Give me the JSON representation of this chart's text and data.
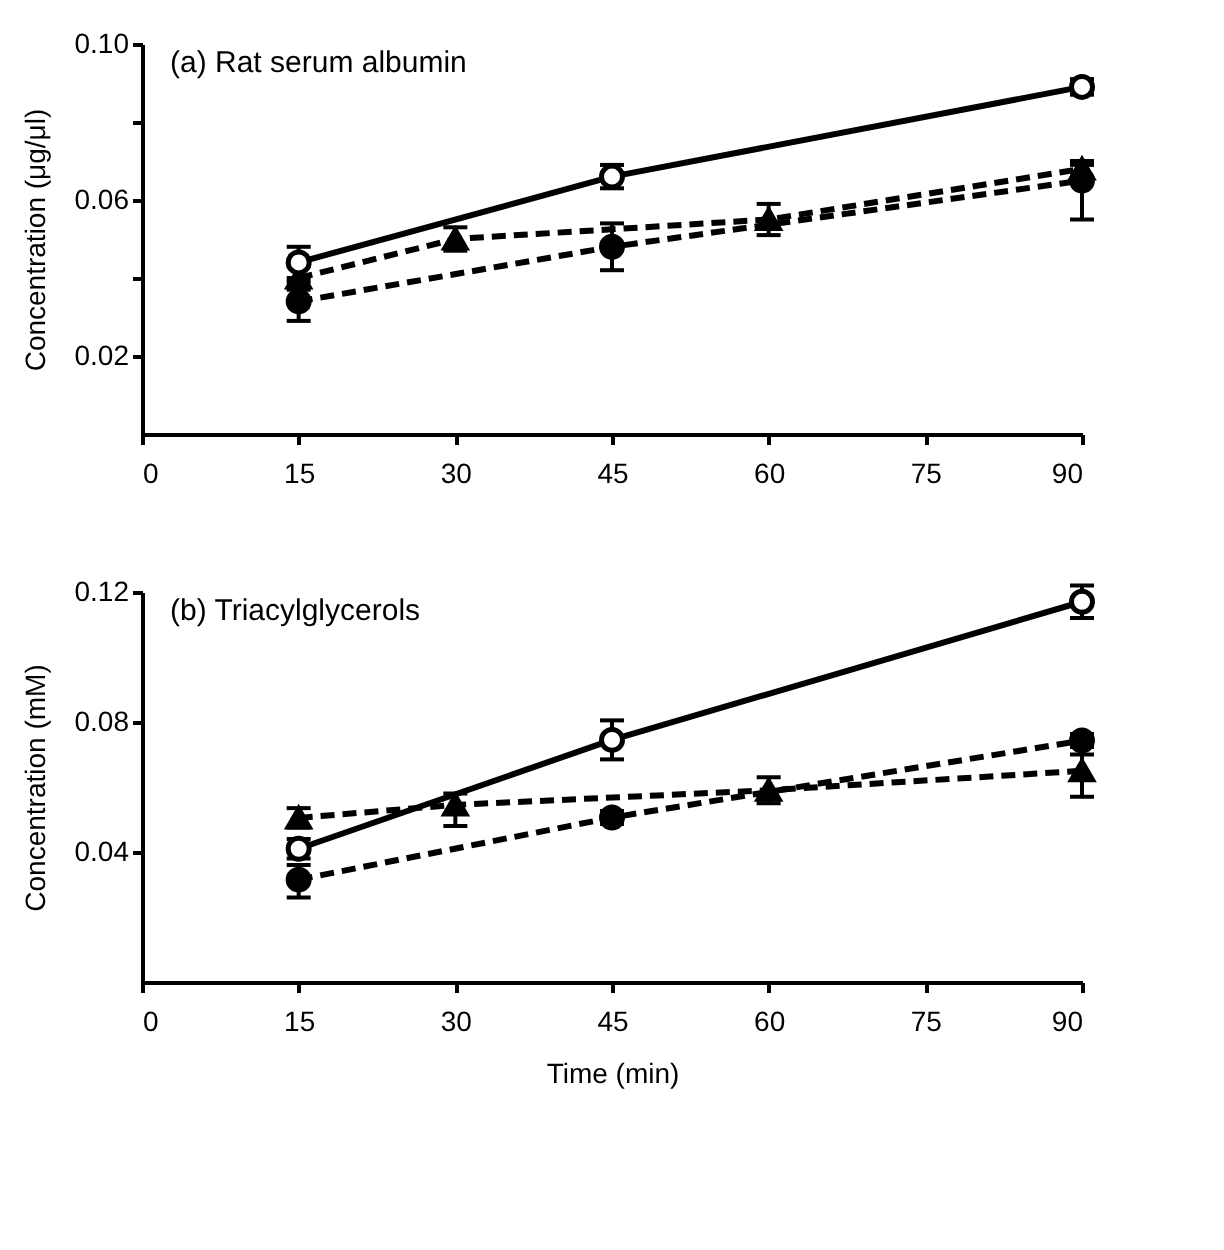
{
  "chart_data": [
    {
      "type": "line",
      "title": "(a)  Rat serum albumin",
      "ylabel": "Concentration (μg/μl)",
      "xlim": [
        0,
        90
      ],
      "xticks": [
        0,
        15,
        30,
        45,
        60,
        75,
        90
      ],
      "ylim": [
        0,
        0.1
      ],
      "yticks": [
        {
          "value": 0.02,
          "label": "0.02"
        },
        {
          "value": 0.04,
          "label": null
        },
        {
          "value": 0.06,
          "label": "0.06"
        },
        {
          "value": 0.08,
          "label": null
        },
        {
          "value": 0.1,
          "label": "0.10"
        }
      ],
      "grid": false,
      "series": [
        {
          "color": "#000000",
          "marker": "circle",
          "line_style": "solid",
          "x": [
            15,
            45,
            90
          ],
          "values": [
            0.044,
            0.066,
            0.089
          ],
          "errors": [
            0.004,
            0.003,
            0.002
          ]
        },
        {
          "color": "#000000",
          "marker": "triangle",
          "line_style": "dashed",
          "x": [
            15,
            30,
            60,
            90
          ],
          "values": [
            0.04,
            0.05,
            0.055,
            0.068
          ],
          "errors": [
            0.003,
            0.003,
            0.004,
            0.002
          ]
        },
        {
          "color": "#000000",
          "marker": "circle",
          "line_style": "dashed",
          "x": [
            15,
            45,
            90
          ],
          "values": [
            0.034,
            0.048,
            0.065
          ],
          "errors": [
            0.005,
            0.006,
            [
              0.055,
              0.069
            ]
          ]
        }
      ]
    },
    {
      "type": "line",
      "title": "(b)  Triacylglycerols",
      "ylabel": "Concentration (mM)",
      "xlabel": "Time (min)",
      "xlim": [
        0,
        90
      ],
      "xticks": [
        0,
        15,
        30,
        45,
        60,
        75,
        90
      ],
      "ylim": [
        0,
        0.12
      ],
      "yticks": [
        0.04,
        0.08,
        0.12
      ],
      "grid": false,
      "series": [
        {
          "color": "#000000",
          "marker": "circle",
          "line_style": "solid",
          "x": [
            15,
            45,
            90
          ],
          "values": [
            0.041,
            0.0745,
            0.117
          ],
          "errors": [
            0.003,
            0.006,
            0.005
          ]
        },
        {
          "color": "#000000",
          "marker": "triangle",
          "line_style": "dashed",
          "x": [
            15,
            30,
            60,
            90
          ],
          "values": [
            0.0505,
            0.0545,
            0.059,
            0.065
          ],
          "errors": [
            0.003,
            [
              0.048,
              0.058
            ],
            0.004,
            [
              0.057,
              0.07
            ]
          ]
        },
        {
          "color": "#000000",
          "marker": "circle",
          "line_style": "dashed",
          "x": [
            15,
            45,
            90
          ],
          "values": [
            0.0315,
            0.0506,
            0.0743
          ],
          "errors": [
            [
              0.026,
              0.036
            ],
            0.002,
            0.002
          ]
        }
      ]
    }
  ]
}
